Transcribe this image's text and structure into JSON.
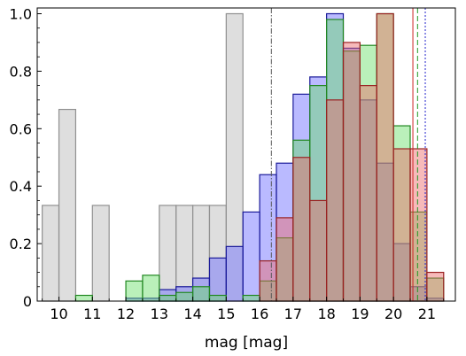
{
  "chart_data": {
    "type": "histogram",
    "xlabel": "mag [mag]",
    "ylabel": "",
    "title": "",
    "xlim": [
      9.35,
      21.85
    ],
    "ylim": [
      0,
      1.02
    ],
    "xticks": [
      10,
      11,
      12,
      13,
      14,
      15,
      16,
      17,
      18,
      19,
      20,
      21
    ],
    "yticks": [
      0.0,
      0.2,
      0.4,
      0.6,
      0.8,
      1.0
    ],
    "ytick_labels": [
      "0",
      "0.2",
      "0.4",
      "0.6",
      "0.8",
      "1.0"
    ],
    "grid": false,
    "legend": "none",
    "bin_width": 0.5,
    "series": [
      {
        "color": "#c8c8c8",
        "edge": "#909090",
        "alpha": 0.6,
        "bins": [
          [
            9.5,
            0.333
          ],
          [
            10.0,
            0.667
          ],
          [
            10.5,
            0.0
          ],
          [
            11.0,
            0.333
          ],
          [
            11.5,
            0.0
          ],
          [
            12.0,
            0.0
          ],
          [
            12.5,
            0.0
          ],
          [
            13.0,
            0.333
          ],
          [
            13.5,
            0.333
          ],
          [
            14.0,
            0.333
          ],
          [
            14.5,
            0.333
          ],
          [
            15.0,
            1.0
          ],
          [
            15.5,
            0.0
          ]
        ]
      },
      {
        "color": "#6666ff",
        "edge": "#1a1a99",
        "alpha": 0.45,
        "bins": [
          [
            12.0,
            0.01
          ],
          [
            12.5,
            0.01
          ],
          [
            13.0,
            0.04
          ],
          [
            13.5,
            0.05
          ],
          [
            14.0,
            0.08
          ],
          [
            14.5,
            0.15
          ],
          [
            15.0,
            0.19
          ],
          [
            15.5,
            0.31
          ],
          [
            16.0,
            0.44
          ],
          [
            16.5,
            0.48
          ],
          [
            17.0,
            0.72
          ],
          [
            17.5,
            0.78
          ],
          [
            18.0,
            1.0
          ],
          [
            18.5,
            0.88
          ],
          [
            19.0,
            0.7
          ],
          [
            19.5,
            0.48
          ],
          [
            20.0,
            0.2
          ],
          [
            20.5,
            0.05
          ],
          [
            21.0,
            0.01
          ]
        ]
      },
      {
        "color": "#66dd66",
        "edge": "#228822",
        "alpha": 0.45,
        "bins": [
          [
            10.5,
            0.02
          ],
          [
            11.0,
            0.0
          ],
          [
            11.5,
            0.0
          ],
          [
            12.0,
            0.07
          ],
          [
            12.5,
            0.09
          ],
          [
            13.0,
            0.02
          ],
          [
            13.5,
            0.03
          ],
          [
            14.0,
            0.05
          ],
          [
            14.5,
            0.02
          ],
          [
            15.0,
            0.0
          ],
          [
            15.5,
            0.02
          ],
          [
            16.0,
            0.07
          ],
          [
            16.5,
            0.22
          ],
          [
            17.0,
            0.56
          ],
          [
            17.5,
            0.75
          ],
          [
            18.0,
            0.98
          ],
          [
            18.5,
            0.87
          ],
          [
            19.0,
            0.89
          ],
          [
            19.5,
            1.0
          ],
          [
            20.0,
            0.61
          ],
          [
            20.5,
            0.31
          ],
          [
            21.0,
            0.08
          ]
        ]
      },
      {
        "color": "#ee6666",
        "edge": "#992222",
        "alpha": 0.45,
        "bins": [
          [
            16.0,
            0.14
          ],
          [
            16.5,
            0.29
          ],
          [
            17.0,
            0.5
          ],
          [
            17.5,
            0.35
          ],
          [
            18.0,
            0.7
          ],
          [
            18.5,
            0.9
          ],
          [
            19.0,
            0.75
          ],
          [
            19.5,
            1.0
          ],
          [
            20.0,
            0.53
          ],
          [
            20.5,
            0.53
          ],
          [
            21.0,
            0.1
          ]
        ]
      }
    ],
    "vlines": [
      {
        "x": 16.35,
        "color": "#555555",
        "style": "dashdot"
      },
      {
        "x": 20.58,
        "color": "#cc2222",
        "style": "solid"
      },
      {
        "x": 20.72,
        "color": "#229922",
        "style": "dashed"
      },
      {
        "x": 20.95,
        "color": "#2222cc",
        "style": "dotted"
      }
    ]
  }
}
